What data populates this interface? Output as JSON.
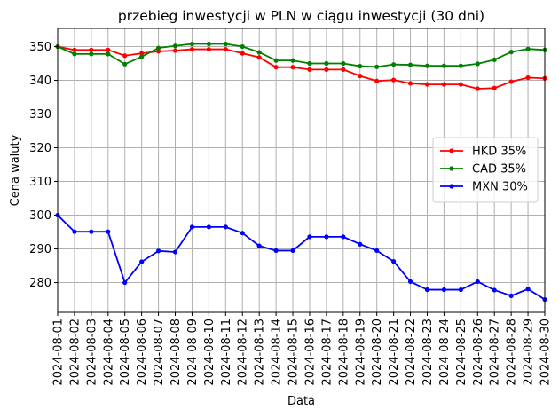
{
  "chart_data": {
    "type": "line",
    "title": "przebieg inwestycji w PLN w ciągu inwestycji (30 dni)",
    "xlabel": "Data",
    "ylabel": "Cena waluty",
    "ylim": [
      271.2,
      355.4
    ],
    "yticks": [
      280,
      290,
      300,
      310,
      320,
      330,
      340,
      350
    ],
    "grid": true,
    "legend_position": "center-right",
    "x": [
      "2024-08-01",
      "2024-08-02",
      "2024-08-03",
      "2024-08-04",
      "2024-08-05",
      "2024-08-06",
      "2024-08-07",
      "2024-08-08",
      "2024-08-09",
      "2024-08-10",
      "2024-08-11",
      "2024-08-12",
      "2024-08-13",
      "2024-08-14",
      "2024-08-15",
      "2024-08-16",
      "2024-08-17",
      "2024-08-18",
      "2024-08-19",
      "2024-08-20",
      "2024-08-21",
      "2024-08-22",
      "2024-08-23",
      "2024-08-24",
      "2024-08-25",
      "2024-08-26",
      "2024-08-27",
      "2024-08-28",
      "2024-08-29",
      "2024-08-30"
    ],
    "series": [
      {
        "name": "HKD 35%",
        "color": "#ff0000",
        "values": [
          350.0,
          349.0,
          349.0,
          349.0,
          347.3,
          348.0,
          348.6,
          348.8,
          349.2,
          349.2,
          349.2,
          348.0,
          346.8,
          343.9,
          343.9,
          343.2,
          343.2,
          343.2,
          341.3,
          339.8,
          340.1,
          339.1,
          338.8,
          338.8,
          338.8,
          337.5,
          337.7,
          339.6,
          340.8,
          340.6
        ]
      },
      {
        "name": "CAD 35%",
        "color": "#008000",
        "values": [
          350.0,
          347.8,
          347.8,
          347.8,
          344.8,
          347.0,
          349.6,
          350.2,
          350.8,
          350.8,
          350.8,
          350.0,
          348.3,
          345.9,
          345.9,
          345.0,
          345.0,
          345.0,
          344.2,
          344.0,
          344.7,
          344.6,
          344.3,
          344.3,
          344.3,
          344.9,
          346.1,
          348.4,
          349.3,
          349.0
        ]
      },
      {
        "name": "MXN 30%",
        "color": "#0000ff",
        "values": [
          300.0,
          295.1,
          295.1,
          295.1,
          280.0,
          286.2,
          289.4,
          289.1,
          296.5,
          296.5,
          296.5,
          294.7,
          290.9,
          289.5,
          289.5,
          293.6,
          293.6,
          293.6,
          291.4,
          289.5,
          286.3,
          280.3,
          277.9,
          277.9,
          277.9,
          280.3,
          277.8,
          276.1,
          278.1,
          275.0
        ]
      }
    ]
  }
}
